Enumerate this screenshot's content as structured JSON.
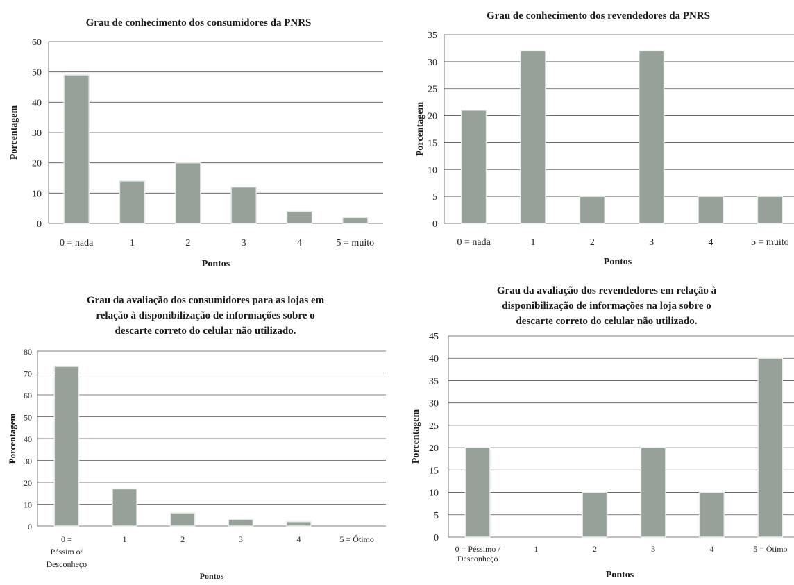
{
  "chart_data": [
    {
      "type": "bar",
      "title": [
        "Grau de conhecimento  dos consumidores  da PNRS"
      ],
      "xlabel": "Pontos",
      "ylabel": "Porcentagem",
      "categories": [
        [
          "0 = nada"
        ],
        [
          "1"
        ],
        [
          "2"
        ],
        [
          "3"
        ],
        [
          "4"
        ],
        [
          "5 = muito"
        ]
      ],
      "values": [
        49,
        14,
        20,
        12,
        4,
        2
      ],
      "yticks": [
        0,
        10,
        20,
        30,
        40,
        50,
        60
      ],
      "ylim": [
        0,
        60
      ],
      "grid": true,
      "bar_color": "#95a199"
    },
    {
      "type": "bar",
      "title": [
        "Grau de conhecimento  dos revendedores da PNRS"
      ],
      "xlabel": "Pontos",
      "ylabel": "Porcentagem",
      "categories": [
        [
          "0 = nada"
        ],
        [
          "1"
        ],
        [
          "2"
        ],
        [
          "3"
        ],
        [
          "4"
        ],
        [
          "5  = muito"
        ]
      ],
      "values": [
        21,
        32,
        5,
        32,
        5,
        5
      ],
      "yticks": [
        0,
        5,
        10,
        15,
        20,
        25,
        30,
        35
      ],
      "ylim": [
        0,
        35
      ],
      "grid": true,
      "bar_color": "#95a199"
    },
    {
      "type": "bar",
      "title": [
        "Grau da avaliação dos consumidores  para  as lojas em",
        "relação à disponibilização  de informações sobre o",
        "descarte correto do celular não utilizado."
      ],
      "xlabel": "Pontos",
      "ylabel": "Porcentagem",
      "categories": [
        [
          "0 =",
          "Péssim o/",
          "Desconheço"
        ],
        [
          "1"
        ],
        [
          "2"
        ],
        [
          "3"
        ],
        [
          "4"
        ],
        [
          "5 = Ótimo"
        ]
      ],
      "values": [
        73,
        17,
        6,
        3,
        2,
        0
      ],
      "yticks": [
        0,
        10,
        20,
        30,
        40,
        50,
        60,
        70,
        80
      ],
      "ylim": [
        0,
        80
      ],
      "grid": true,
      "bar_color": "#95a199"
    },
    {
      "type": "bar",
      "title": [
        "Grau da avaliação dos revendedores em relação à",
        "disponibilização  de informações na loja sobre o",
        "descarte correto do celular não utilizado."
      ],
      "xlabel": "Pontos",
      "ylabel": "Porcentagem",
      "categories": [
        [
          "0 = Péssimo /",
          "Desconheço"
        ],
        [
          "1"
        ],
        [
          "2"
        ],
        [
          "3"
        ],
        [
          "4"
        ],
        [
          "5 = Ótimo"
        ]
      ],
      "values": [
        20,
        0,
        10,
        20,
        10,
        40
      ],
      "yticks": [
        0,
        5,
        10,
        15,
        20,
        25,
        30,
        35,
        40,
        45
      ],
      "ylim": [
        0,
        45
      ],
      "grid": true,
      "bar_color": "#95a199"
    }
  ]
}
